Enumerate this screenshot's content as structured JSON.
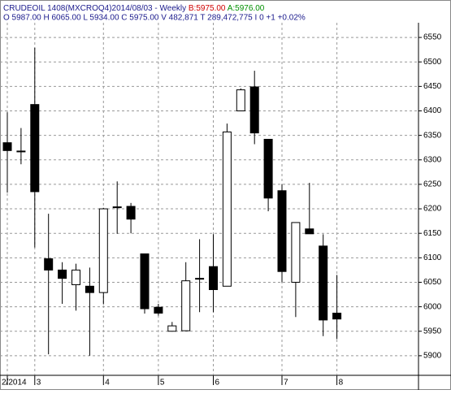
{
  "chart_data": {
    "type": "candlestick",
    "title": "CRUDEOIL 1408(MXCROQ4)2014/08/03",
    "period": " - Weekly",
    "bid": "B:5975.00",
    "ask": "A:5976.00",
    "summary": "O 5987.00 H 6065.00 L 5934.00 C 5975.00 V 482,871 T 289,472,775 I 0  +1  +0.02%",
    "categories": [
      "2/2014",
      null,
      "3",
      null,
      null,
      null,
      null,
      "4",
      null,
      null,
      null,
      "5",
      null,
      null,
      null,
      "6",
      null,
      null,
      null,
      null,
      "7",
      null,
      null,
      null,
      "8"
    ],
    "open": [
      6335,
      6318,
      6413,
      6098,
      6075,
      6045,
      6042,
      6029,
      6204,
      6205,
      6108,
      5999,
      5950,
      5951,
      6057,
      6082,
      6042,
      6400,
      6449,
      6342,
      6237,
      6050,
      6159,
      6124,
      5987
    ],
    "high": [
      6397,
      6365,
      6529,
      6190,
      6091,
      6088,
      6080,
      6202,
      6256,
      6212,
      6108,
      6006,
      5969,
      6091,
      6138,
      6148,
      6374,
      6446,
      6482,
      6342,
      6250,
      6172,
      6253,
      6148,
      6065
    ],
    "low": [
      6233,
      6291,
      6121,
      5903,
      6006,
      5992,
      5900,
      6005,
      6149,
      6150,
      5986,
      5982,
      5950,
      5951,
      5989,
      5989,
      6042,
      6400,
      6332,
      6195,
      6050,
      5979,
      6149,
      5940,
      5934
    ],
    "close": [
      6319,
      6317,
      6235,
      6075,
      6058,
      6075,
      6029,
      6200,
      6203,
      6179,
      5996,
      5987,
      5961,
      6053,
      6058,
      6035,
      6357,
      6443,
      6355,
      6222,
      6072,
      6172,
      6149,
      5973,
      5975
    ],
    "ylim": [
      5860,
      6580
    ],
    "yticks": [
      5900,
      5950,
      6000,
      6050,
      6100,
      6150,
      6200,
      6250,
      6300,
      6350,
      6400,
      6450,
      6500,
      6550
    ],
    "grid": true
  }
}
